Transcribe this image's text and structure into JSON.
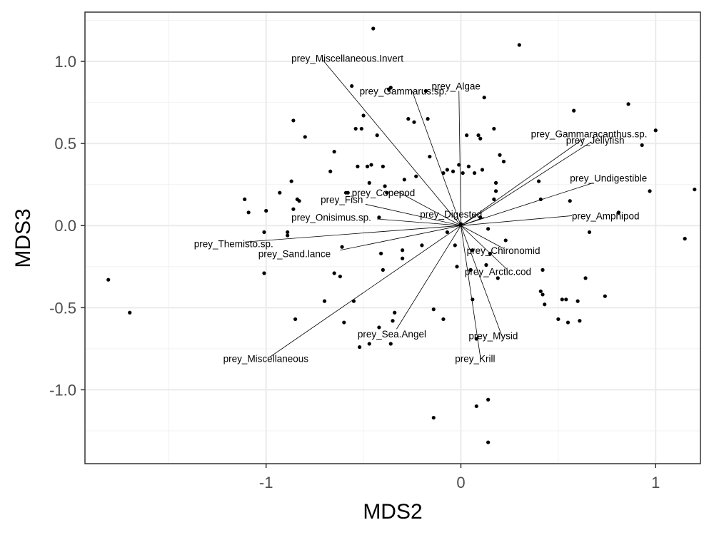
{
  "chart_data": {
    "type": "scatter",
    "title": "",
    "xlabel": "MDS2",
    "ylabel": "MDS3",
    "xlim": [
      -1.93,
      1.23
    ],
    "ylim": [
      -1.45,
      1.3
    ],
    "x_ticks": [
      -1,
      0,
      1
    ],
    "x_tick_labels": [
      "-1",
      "0",
      "1"
    ],
    "y_ticks": [
      1.0,
      0.5,
      0.0,
      -0.5,
      -1.0
    ],
    "y_tick_labels": [
      "1.0",
      "0.5",
      "0.0",
      "-0.5",
      "-1.0"
    ],
    "grid": true,
    "legend": "none",
    "colors": {
      "points": "#000000",
      "vectors": "#000000",
      "panel_border": "#333333",
      "grid": "#ebebeb"
    },
    "points": [
      {
        "x": -1.81,
        "y": -0.33
      },
      {
        "x": -1.7,
        "y": -0.53
      },
      {
        "x": -1.11,
        "y": 0.16
      },
      {
        "x": -1.09,
        "y": 0.08
      },
      {
        "x": -1.01,
        "y": -0.04
      },
      {
        "x": -1.01,
        "y": -0.29
      },
      {
        "x": -1.0,
        "y": 0.09
      },
      {
        "x": -0.93,
        "y": 0.2
      },
      {
        "x": -0.89,
        "y": -0.04
      },
      {
        "x": -0.89,
        "y": -0.06
      },
      {
        "x": -0.87,
        "y": 0.27
      },
      {
        "x": -0.86,
        "y": 0.1
      },
      {
        "x": -0.86,
        "y": 0.64
      },
      {
        "x": -0.85,
        "y": -0.57
      },
      {
        "x": -0.84,
        "y": 0.16
      },
      {
        "x": -0.83,
        "y": 0.15
      },
      {
        "x": -0.8,
        "y": 0.54
      },
      {
        "x": -0.7,
        "y": -0.46
      },
      {
        "x": -0.67,
        "y": 0.33
      },
      {
        "x": -0.65,
        "y": 0.45
      },
      {
        "x": -0.65,
        "y": -0.29
      },
      {
        "x": -0.62,
        "y": -0.31
      },
      {
        "x": -0.61,
        "y": -0.13
      },
      {
        "x": -0.6,
        "y": -0.59
      },
      {
        "x": -0.59,
        "y": 0.2
      },
      {
        "x": -0.58,
        "y": 0.2
      },
      {
        "x": -0.56,
        "y": 0.85
      },
      {
        "x": -0.55,
        "y": -0.46
      },
      {
        "x": -0.54,
        "y": 0.59
      },
      {
        "x": -0.53,
        "y": 0.36
      },
      {
        "x": -0.52,
        "y": -0.74
      },
      {
        "x": -0.51,
        "y": 0.59
      },
      {
        "x": -0.5,
        "y": 0.67
      },
      {
        "x": -0.48,
        "y": 0.36
      },
      {
        "x": -0.47,
        "y": 0.26
      },
      {
        "x": -0.47,
        "y": -0.72
      },
      {
        "x": -0.46,
        "y": 0.37
      },
      {
        "x": -0.45,
        "y": 1.2
      },
      {
        "x": -0.43,
        "y": 0.55
      },
      {
        "x": -0.42,
        "y": 0.05
      },
      {
        "x": -0.42,
        "y": -0.62
      },
      {
        "x": -0.41,
        "y": -0.17
      },
      {
        "x": -0.4,
        "y": 0.36
      },
      {
        "x": -0.4,
        "y": -0.27
      },
      {
        "x": -0.39,
        "y": 0.24
      },
      {
        "x": -0.38,
        "y": 0.2
      },
      {
        "x": -0.37,
        "y": 0.83
      },
      {
        "x": -0.36,
        "y": -0.72
      },
      {
        "x": -0.36,
        "y": 0.84
      },
      {
        "x": -0.35,
        "y": -0.58
      },
      {
        "x": -0.34,
        "y": -0.53
      },
      {
        "x": -0.3,
        "y": -0.15
      },
      {
        "x": -0.3,
        "y": -0.2
      },
      {
        "x": -0.29,
        "y": 0.28
      },
      {
        "x": -0.27,
        "y": 0.65
      },
      {
        "x": -0.24,
        "y": 0.63
      },
      {
        "x": -0.23,
        "y": 0.3
      },
      {
        "x": -0.2,
        "y": -0.12
      },
      {
        "x": -0.18,
        "y": 0.82
      },
      {
        "x": -0.17,
        "y": 0.65
      },
      {
        "x": -0.16,
        "y": 0.42
      },
      {
        "x": -0.14,
        "y": -0.51
      },
      {
        "x": -0.14,
        "y": -1.17
      },
      {
        "x": -0.09,
        "y": -0.57
      },
      {
        "x": -0.09,
        "y": 0.32
      },
      {
        "x": -0.07,
        "y": 0.34
      },
      {
        "x": -0.07,
        "y": -0.04
      },
      {
        "x": -0.04,
        "y": 0.33
      },
      {
        "x": -0.03,
        "y": -0.12
      },
      {
        "x": -0.02,
        "y": -0.25
      },
      {
        "x": -0.01,
        "y": 0.37
      },
      {
        "x": 0.0,
        "y": 0.01
      },
      {
        "x": 0.01,
        "y": 0.32
      },
      {
        "x": 0.03,
        "y": 0.55
      },
      {
        "x": 0.04,
        "y": 0.36
      },
      {
        "x": 0.05,
        "y": -0.27
      },
      {
        "x": 0.06,
        "y": -0.15
      },
      {
        "x": 0.06,
        "y": -0.45
      },
      {
        "x": 0.07,
        "y": 0.32
      },
      {
        "x": 0.08,
        "y": -0.69
      },
      {
        "x": 0.08,
        "y": -1.1
      },
      {
        "x": 0.09,
        "y": 0.55
      },
      {
        "x": 0.1,
        "y": 0.05
      },
      {
        "x": 0.1,
        "y": 0.53
      },
      {
        "x": 0.11,
        "y": 0.34
      },
      {
        "x": 0.12,
        "y": 0.78
      },
      {
        "x": 0.13,
        "y": -0.24
      },
      {
        "x": 0.14,
        "y": -0.02
      },
      {
        "x": 0.14,
        "y": -1.06
      },
      {
        "x": 0.14,
        "y": -1.32
      },
      {
        "x": 0.15,
        "y": -0.17
      },
      {
        "x": 0.17,
        "y": 0.59
      },
      {
        "x": 0.17,
        "y": 0.16
      },
      {
        "x": 0.18,
        "y": 0.21
      },
      {
        "x": 0.18,
        "y": 0.26
      },
      {
        "x": 0.19,
        "y": -0.32
      },
      {
        "x": 0.2,
        "y": 0.43
      },
      {
        "x": 0.22,
        "y": 0.39
      },
      {
        "x": 0.23,
        "y": -0.09
      },
      {
        "x": 0.3,
        "y": 1.1
      },
      {
        "x": 0.4,
        "y": 0.27
      },
      {
        "x": 0.41,
        "y": 0.16
      },
      {
        "x": 0.41,
        "y": -0.4
      },
      {
        "x": 0.42,
        "y": -0.27
      },
      {
        "x": 0.42,
        "y": -0.42
      },
      {
        "x": 0.43,
        "y": -0.48
      },
      {
        "x": 0.5,
        "y": -0.57
      },
      {
        "x": 0.52,
        "y": -0.45
      },
      {
        "x": 0.54,
        "y": -0.45
      },
      {
        "x": 0.55,
        "y": -0.59
      },
      {
        "x": 0.56,
        "y": 0.15
      },
      {
        "x": 0.58,
        "y": 0.7
      },
      {
        "x": 0.6,
        "y": -0.46
      },
      {
        "x": 0.61,
        "y": -0.58
      },
      {
        "x": 0.64,
        "y": -0.32
      },
      {
        "x": 0.66,
        "y": -0.04
      },
      {
        "x": 0.74,
        "y": -0.43
      },
      {
        "x": 0.81,
        "y": 0.08
      },
      {
        "x": 0.86,
        "y": 0.74
      },
      {
        "x": 0.93,
        "y": 0.49
      },
      {
        "x": 0.97,
        "y": 0.21
      },
      {
        "x": 1.0,
        "y": 0.58
      },
      {
        "x": 1.15,
        "y": -0.08
      },
      {
        "x": 1.2,
        "y": 0.22
      }
    ],
    "vectors": [
      {
        "label": "prey_Miscellaneous.Invert",
        "x": -0.71,
        "y": 1.01,
        "label_x": -0.87,
        "label_y": 1.02,
        "anchor": "start"
      },
      {
        "label": "prey_Gammarus.sp.",
        "x": -0.25,
        "y": 0.82,
        "label_x": -0.52,
        "label_y": 0.82,
        "anchor": "start"
      },
      {
        "label": "prey_Algae",
        "x": -0.01,
        "y": 0.82,
        "label_x": -0.15,
        "label_y": 0.85,
        "anchor": "start"
      },
      {
        "label": "prey_Gammaracanthus.sp.",
        "x": 0.63,
        "y": 0.53,
        "label_x": 0.36,
        "label_y": 0.56,
        "anchor": "start"
      },
      {
        "label": "prey_Jellyfish",
        "x": 0.67,
        "y": 0.51,
        "label_x": 0.54,
        "label_y": 0.52,
        "anchor": "start"
      },
      {
        "label": "prey_Undigestible",
        "x": 0.68,
        "y": 0.26,
        "label_x": 0.56,
        "label_y": 0.29,
        "anchor": "start"
      },
      {
        "label": "prey_Amphipod",
        "x": 0.57,
        "y": 0.06,
        "label_x": 0.57,
        "label_y": 0.06,
        "anchor": "start"
      },
      {
        "label": "prey_Copepod",
        "x": -0.33,
        "y": 0.21,
        "label_x": -0.56,
        "label_y": 0.2,
        "anchor": "start"
      },
      {
        "label": "prey_Fish",
        "x": -0.49,
        "y": 0.13,
        "label_x": -0.72,
        "label_y": 0.16,
        "anchor": "start"
      },
      {
        "label": "prey_Digested",
        "x": 0.12,
        "y": 0.05,
        "label_x": -0.21,
        "label_y": 0.07,
        "anchor": "start"
      },
      {
        "label": "prey_Onisimus.sp.",
        "x": -0.43,
        "y": 0.04,
        "label_x": -0.87,
        "label_y": 0.05,
        "anchor": "start"
      },
      {
        "label": "prey_Themisto.sp.",
        "x": -1.11,
        "y": -0.1,
        "label_x": -1.37,
        "label_y": -0.11,
        "anchor": "start"
      },
      {
        "label": "prey_Sand.lance",
        "x": -0.62,
        "y": -0.15,
        "label_x": -1.04,
        "label_y": -0.17,
        "anchor": "start"
      },
      {
        "label": "prey_Chironomid",
        "x": 0.22,
        "y": -0.14,
        "label_x": 0.03,
        "label_y": -0.15,
        "anchor": "start"
      },
      {
        "label": "prey_Arctic.cod",
        "x": 0.24,
        "y": -0.27,
        "label_x": 0.02,
        "label_y": -0.28,
        "anchor": "start"
      },
      {
        "label": "prey_Sea.Angel",
        "x": -0.33,
        "y": -0.63,
        "label_x": -0.53,
        "label_y": -0.66,
        "anchor": "start"
      },
      {
        "label": "prey_Mysid",
        "x": 0.21,
        "y": -0.67,
        "label_x": 0.04,
        "label_y": -0.67,
        "anchor": "start"
      },
      {
        "label": "prey_Krill",
        "x": 0.1,
        "y": -0.8,
        "label_x": -0.03,
        "label_y": -0.81,
        "anchor": "start"
      },
      {
        "label": "prey_Miscellaneous",
        "x": -0.98,
        "y": -0.8,
        "label_x": -1.22,
        "label_y": -0.81,
        "anchor": "start"
      }
    ]
  }
}
